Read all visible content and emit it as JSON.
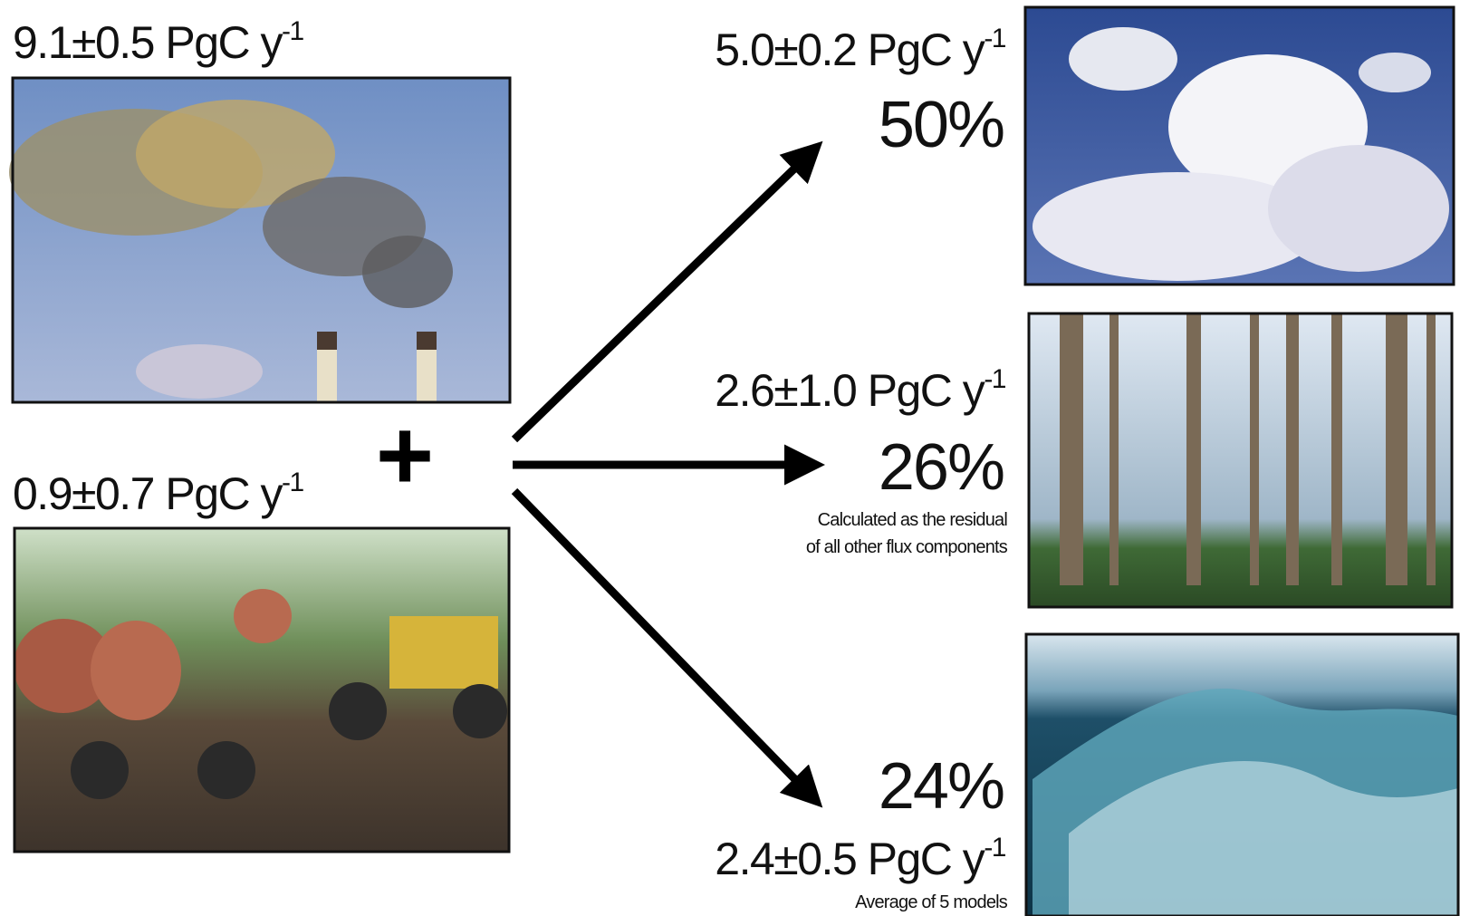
{
  "sources": [
    {
      "flux": "9.1±0.5 PgC y",
      "unit_exponent": "-1"
    },
    {
      "flux": "0.9±0.7 PgC y",
      "unit_exponent": "-1"
    }
  ],
  "operator": "+",
  "sinks": [
    {
      "flux": "5.0±0.2 PgC y",
      "unit_exponent": "-1",
      "share": "50%"
    },
    {
      "flux": "2.6±1.0 PgC y",
      "unit_exponent": "-1",
      "share": "26%",
      "note": [
        "Calculated as the residual",
        "of all other flux components"
      ]
    },
    {
      "flux": "2.4±0.5 PgC y",
      "unit_exponent": "-1",
      "share": "24%",
      "note": [
        "Average of 5 models"
      ]
    }
  ]
}
